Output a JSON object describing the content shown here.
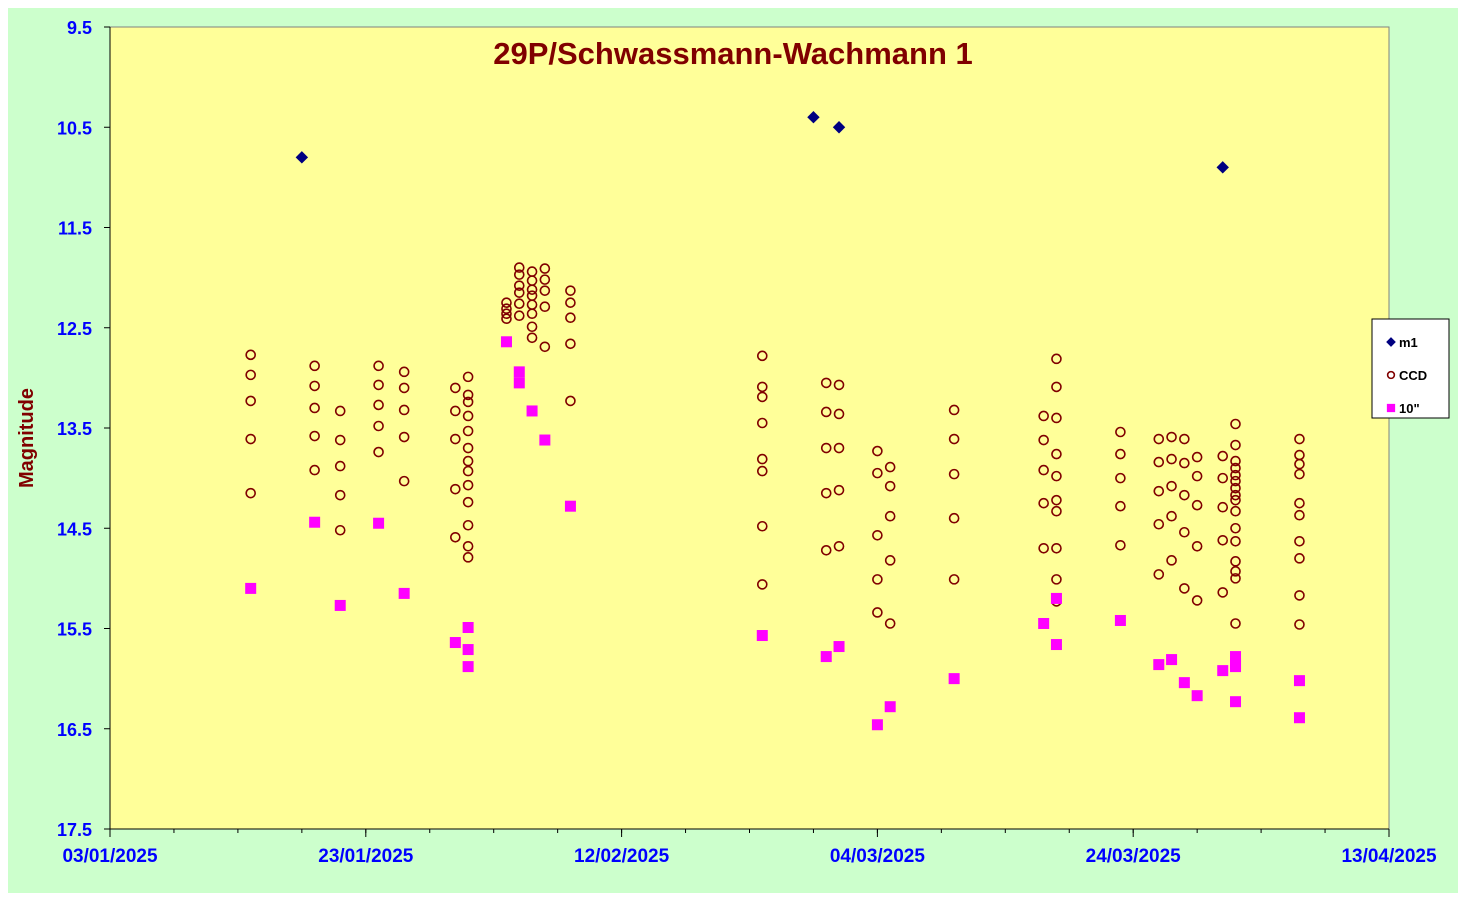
{
  "colors": {
    "background": "#ccffcc",
    "plot_area": "#ffff99",
    "title": "#800000",
    "axis_label": "#800000",
    "tick_label": "#0000ff",
    "m1": "#000080",
    "ccd": "#800000",
    "ten_inch": "#ff00ff"
  },
  "chart_data": {
    "type": "scatter",
    "title": "29P/Schwassmann-Wachmann 1",
    "xlabel": "",
    "ylabel": "Magnitude",
    "x_ticks": [
      "03/01/2025",
      "23/01/2025",
      "12/02/2025",
      "04/03/2025",
      "24/03/2025",
      "13/04/2025"
    ],
    "x_range": [
      "2025-01-03",
      "2025-04-13"
    ],
    "x_minor_tick_interval_days": 5,
    "y_ticks": [
      "9.5",
      "10.5",
      "11.5",
      "12.5",
      "13.5",
      "14.5",
      "15.5",
      "16.5",
      "17.5"
    ],
    "y_range": [
      9.5,
      17.5
    ],
    "y_inverted": true,
    "grid": false,
    "legend_position": "right",
    "series": [
      {
        "name": "m1",
        "marker": "diamond",
        "points": [
          [
            "2025-01-18",
            10.8
          ],
          [
            "2025-02-27",
            10.4
          ],
          [
            "2025-03-01",
            10.5
          ],
          [
            "2025-03-31",
            10.9
          ]
        ]
      },
      {
        "name": "CCD",
        "marker": "circle",
        "points": [
          [
            "2025-01-14",
            12.77
          ],
          [
            "2025-01-14",
            12.97
          ],
          [
            "2025-01-14",
            13.23
          ],
          [
            "2025-01-14",
            13.61
          ],
          [
            "2025-01-14",
            14.15
          ],
          [
            "2025-01-19",
            12.88
          ],
          [
            "2025-01-19",
            13.08
          ],
          [
            "2025-01-19",
            13.3
          ],
          [
            "2025-01-19",
            13.58
          ],
          [
            "2025-01-19",
            13.92
          ],
          [
            "2025-01-21",
            13.33
          ],
          [
            "2025-01-21",
            13.62
          ],
          [
            "2025-01-21",
            13.88
          ],
          [
            "2025-01-21",
            14.17
          ],
          [
            "2025-01-21",
            14.52
          ],
          [
            "2025-01-24",
            12.88
          ],
          [
            "2025-01-24",
            13.07
          ],
          [
            "2025-01-24",
            13.27
          ],
          [
            "2025-01-24",
            13.48
          ],
          [
            "2025-01-24",
            13.74
          ],
          [
            "2025-01-26",
            12.94
          ],
          [
            "2025-01-26",
            13.1
          ],
          [
            "2025-01-26",
            13.32
          ],
          [
            "2025-01-26",
            13.59
          ],
          [
            "2025-01-26",
            14.03
          ],
          [
            "2025-01-30",
            13.1
          ],
          [
            "2025-01-30",
            13.33
          ],
          [
            "2025-01-30",
            13.61
          ],
          [
            "2025-01-30",
            14.11
          ],
          [
            "2025-01-30",
            14.59
          ],
          [
            "2025-01-31",
            12.99
          ],
          [
            "2025-01-31",
            13.17
          ],
          [
            "2025-01-31",
            13.24
          ],
          [
            "2025-01-31",
            13.38
          ],
          [
            "2025-01-31",
            13.53
          ],
          [
            "2025-01-31",
            13.7
          ],
          [
            "2025-01-31",
            13.83
          ],
          [
            "2025-01-31",
            13.93
          ],
          [
            "2025-01-31",
            14.07
          ],
          [
            "2025-01-31",
            14.24
          ],
          [
            "2025-01-31",
            14.47
          ],
          [
            "2025-01-31",
            14.68
          ],
          [
            "2025-01-31",
            14.79
          ],
          [
            "2025-02-03",
            12.25
          ],
          [
            "2025-02-03",
            12.31
          ],
          [
            "2025-02-03",
            12.36
          ],
          [
            "2025-02-03",
            12.41
          ],
          [
            "2025-02-04",
            11.9
          ],
          [
            "2025-02-04",
            11.97
          ],
          [
            "2025-02-04",
            12.08
          ],
          [
            "2025-02-04",
            12.15
          ],
          [
            "2025-02-04",
            12.26
          ],
          [
            "2025-02-04",
            12.38
          ],
          [
            "2025-02-05",
            11.94
          ],
          [
            "2025-02-05",
            12.03
          ],
          [
            "2025-02-05",
            12.12
          ],
          [
            "2025-02-05",
            12.18
          ],
          [
            "2025-02-05",
            12.27
          ],
          [
            "2025-02-05",
            12.36
          ],
          [
            "2025-02-05",
            12.49
          ],
          [
            "2025-02-05",
            12.6
          ],
          [
            "2025-02-06",
            11.91
          ],
          [
            "2025-02-06",
            12.02
          ],
          [
            "2025-02-06",
            12.13
          ],
          [
            "2025-02-06",
            12.29
          ],
          [
            "2025-02-06",
            12.69
          ],
          [
            "2025-02-08",
            12.13
          ],
          [
            "2025-02-08",
            12.25
          ],
          [
            "2025-02-08",
            12.4
          ],
          [
            "2025-02-08",
            12.66
          ],
          [
            "2025-02-08",
            13.23
          ],
          [
            "2025-02-23",
            12.78
          ],
          [
            "2025-02-23",
            13.09
          ],
          [
            "2025-02-23",
            13.19
          ],
          [
            "2025-02-23",
            13.45
          ],
          [
            "2025-02-23",
            13.81
          ],
          [
            "2025-02-23",
            13.93
          ],
          [
            "2025-02-23",
            14.48
          ],
          [
            "2025-02-23",
            15.06
          ],
          [
            "2025-02-28",
            13.05
          ],
          [
            "2025-02-28",
            13.34
          ],
          [
            "2025-02-28",
            13.7
          ],
          [
            "2025-02-28",
            14.15
          ],
          [
            "2025-02-28",
            14.72
          ],
          [
            "2025-03-01",
            13.07
          ],
          [
            "2025-03-01",
            13.36
          ],
          [
            "2025-03-01",
            13.7
          ],
          [
            "2025-03-01",
            14.12
          ],
          [
            "2025-03-01",
            14.68
          ],
          [
            "2025-03-04",
            13.73
          ],
          [
            "2025-03-04",
            13.95
          ],
          [
            "2025-03-04",
            14.57
          ],
          [
            "2025-03-04",
            15.01
          ],
          [
            "2025-03-04",
            15.34
          ],
          [
            "2025-03-05",
            13.89
          ],
          [
            "2025-03-05",
            14.08
          ],
          [
            "2025-03-05",
            14.38
          ],
          [
            "2025-03-05",
            14.82
          ],
          [
            "2025-03-05",
            15.45
          ],
          [
            "2025-03-10",
            13.32
          ],
          [
            "2025-03-10",
            13.61
          ],
          [
            "2025-03-10",
            13.96
          ],
          [
            "2025-03-10",
            14.4
          ],
          [
            "2025-03-10",
            15.01
          ],
          [
            "2025-03-17",
            13.38
          ],
          [
            "2025-03-17",
            13.62
          ],
          [
            "2025-03-17",
            13.92
          ],
          [
            "2025-03-17",
            14.25
          ],
          [
            "2025-03-17",
            14.7
          ],
          [
            "2025-03-18",
            12.81
          ],
          [
            "2025-03-18",
            13.09
          ],
          [
            "2025-03-18",
            13.4
          ],
          [
            "2025-03-18",
            13.76
          ],
          [
            "2025-03-18",
            13.98
          ],
          [
            "2025-03-18",
            14.22
          ],
          [
            "2025-03-18",
            14.33
          ],
          [
            "2025-03-18",
            14.7
          ],
          [
            "2025-03-18",
            15.01
          ],
          [
            "2025-03-18",
            15.23
          ],
          [
            "2025-03-23",
            13.54
          ],
          [
            "2025-03-23",
            13.76
          ],
          [
            "2025-03-23",
            14.0
          ],
          [
            "2025-03-23",
            14.28
          ],
          [
            "2025-03-23",
            14.67
          ],
          [
            "2025-03-26",
            13.61
          ],
          [
            "2025-03-26",
            13.84
          ],
          [
            "2025-03-26",
            14.13
          ],
          [
            "2025-03-26",
            14.46
          ],
          [
            "2025-03-26",
            14.96
          ],
          [
            "2025-03-27",
            13.59
          ],
          [
            "2025-03-27",
            13.81
          ],
          [
            "2025-03-27",
            14.08
          ],
          [
            "2025-03-27",
            14.38
          ],
          [
            "2025-03-27",
            14.82
          ],
          [
            "2025-03-28",
            13.61
          ],
          [
            "2025-03-28",
            13.85
          ],
          [
            "2025-03-28",
            14.17
          ],
          [
            "2025-03-28",
            14.54
          ],
          [
            "2025-03-28",
            15.1
          ],
          [
            "2025-03-29",
            13.79
          ],
          [
            "2025-03-29",
            13.98
          ],
          [
            "2025-03-29",
            14.27
          ],
          [
            "2025-03-29",
            14.68
          ],
          [
            "2025-03-29",
            15.22
          ],
          [
            "2025-03-31",
            13.78
          ],
          [
            "2025-03-31",
            14.0
          ],
          [
            "2025-03-31",
            14.29
          ],
          [
            "2025-03-31",
            14.62
          ],
          [
            "2025-03-31",
            15.14
          ],
          [
            "2025-04-01",
            13.46
          ],
          [
            "2025-04-01",
            13.67
          ],
          [
            "2025-04-01",
            13.83
          ],
          [
            "2025-04-01",
            13.9
          ],
          [
            "2025-04-01",
            13.97
          ],
          [
            "2025-04-01",
            14.03
          ],
          [
            "2025-04-01",
            14.1
          ],
          [
            "2025-04-01",
            14.17
          ],
          [
            "2025-04-01",
            14.22
          ],
          [
            "2025-04-01",
            14.33
          ],
          [
            "2025-04-01",
            14.5
          ],
          [
            "2025-04-01",
            14.63
          ],
          [
            "2025-04-01",
            14.83
          ],
          [
            "2025-04-01",
            14.93
          ],
          [
            "2025-04-01",
            15.0
          ],
          [
            "2025-04-01",
            15.45
          ],
          [
            "2025-04-06",
            13.61
          ],
          [
            "2025-04-06",
            13.77
          ],
          [
            "2025-04-06",
            13.86
          ],
          [
            "2025-04-06",
            13.96
          ],
          [
            "2025-04-06",
            14.25
          ],
          [
            "2025-04-06",
            14.37
          ],
          [
            "2025-04-06",
            14.63
          ],
          [
            "2025-04-06",
            14.8
          ],
          [
            "2025-04-06",
            15.17
          ],
          [
            "2025-04-06",
            15.46
          ]
        ]
      },
      {
        "name": "10\"",
        "marker": "square",
        "points": [
          [
            "2025-01-14",
            15.1
          ],
          [
            "2025-01-19",
            14.44
          ],
          [
            "2025-01-21",
            15.27
          ],
          [
            "2025-01-24",
            14.45
          ],
          [
            "2025-01-26",
            15.15
          ],
          [
            "2025-01-30",
            15.64
          ],
          [
            "2025-01-31",
            15.49
          ],
          [
            "2025-01-31",
            15.71
          ],
          [
            "2025-01-31",
            15.88
          ],
          [
            "2025-02-03",
            12.64
          ],
          [
            "2025-02-04",
            12.94
          ],
          [
            "2025-02-04",
            13.05
          ],
          [
            "2025-02-05",
            13.33
          ],
          [
            "2025-02-06",
            13.62
          ],
          [
            "2025-02-08",
            14.28
          ],
          [
            "2025-02-23",
            15.57
          ],
          [
            "2025-02-28",
            15.78
          ],
          [
            "2025-03-01",
            15.68
          ],
          [
            "2025-03-04",
            16.46
          ],
          [
            "2025-03-05",
            16.28
          ],
          [
            "2025-03-10",
            16.0
          ],
          [
            "2025-03-17",
            15.45
          ],
          [
            "2025-03-18",
            15.2
          ],
          [
            "2025-03-18",
            15.66
          ],
          [
            "2025-03-23",
            15.42
          ],
          [
            "2025-03-26",
            15.86
          ],
          [
            "2025-03-27",
            15.81
          ],
          [
            "2025-03-28",
            16.04
          ],
          [
            "2025-03-29",
            16.17
          ],
          [
            "2025-03-31",
            15.92
          ],
          [
            "2025-04-01",
            15.78
          ],
          [
            "2025-04-01",
            15.85
          ],
          [
            "2025-04-01",
            15.88
          ],
          [
            "2025-04-01",
            16.23
          ],
          [
            "2025-04-06",
            16.02
          ],
          [
            "2025-04-06",
            16.39
          ]
        ]
      }
    ]
  }
}
